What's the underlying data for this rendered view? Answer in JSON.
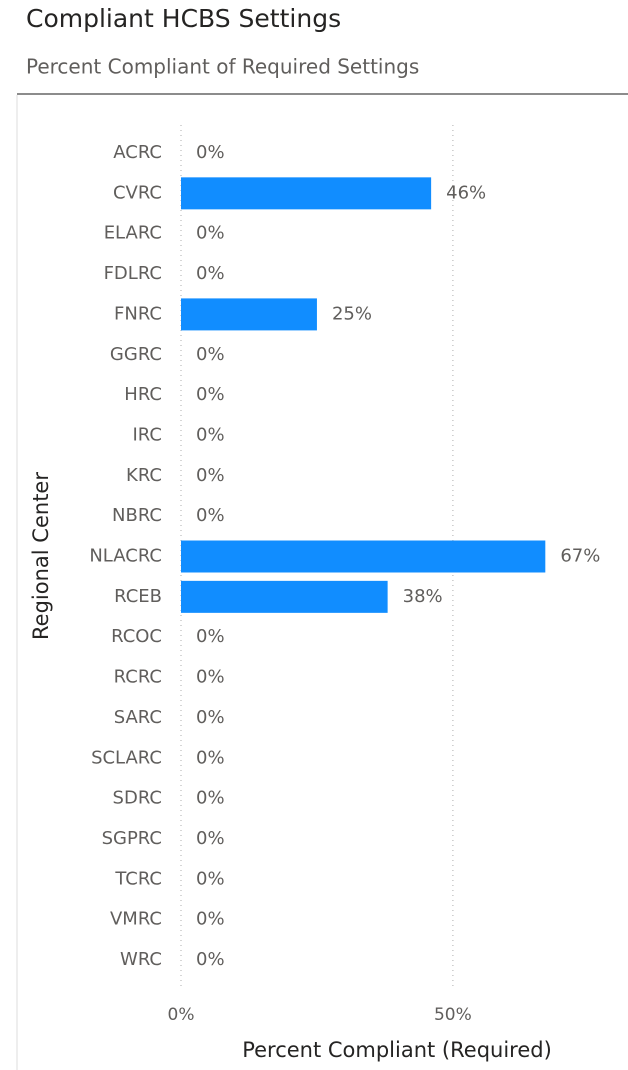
{
  "chart_data": {
    "type": "bar",
    "orientation": "horizontal",
    "title": "Compliant HCBS Settings",
    "subtitle": "Percent Compliant of Required Settings",
    "x_label": "Percent Compliant (Required)",
    "y_label": "Regional Center",
    "categories": [
      "ACRC",
      "CVRC",
      "ELARC",
      "FDLRC",
      "FNRC",
      "GGRC",
      "HRC",
      "IRC",
      "KRC",
      "NBRC",
      "NLACRC",
      "RCEB",
      "RCOC",
      "RCRC",
      "SARC",
      "SCLARC",
      "SDRC",
      "SGPRC",
      "TCRC",
      "VMRC",
      "WRC"
    ],
    "values": [
      0,
      46,
      0,
      0,
      25,
      0,
      0,
      0,
      0,
      0,
      67,
      38,
      0,
      0,
      0,
      0,
      0,
      0,
      0,
      0,
      0
    ],
    "value_labels": [
      "0%",
      "46%",
      "0%",
      "0%",
      "25%",
      "0%",
      "0%",
      "0%",
      "0%",
      "0%",
      "67%",
      "38%",
      "0%",
      "0%",
      "0%",
      "0%",
      "0%",
      "0%",
      "0%",
      "0%",
      "0%"
    ],
    "color": "#118DFF",
    "xlim": [
      0,
      80
    ],
    "xticks": [
      {
        "value": 0,
        "label": "0%"
      },
      {
        "value": 50,
        "label": "50%"
      }
    ],
    "grid": true
  }
}
